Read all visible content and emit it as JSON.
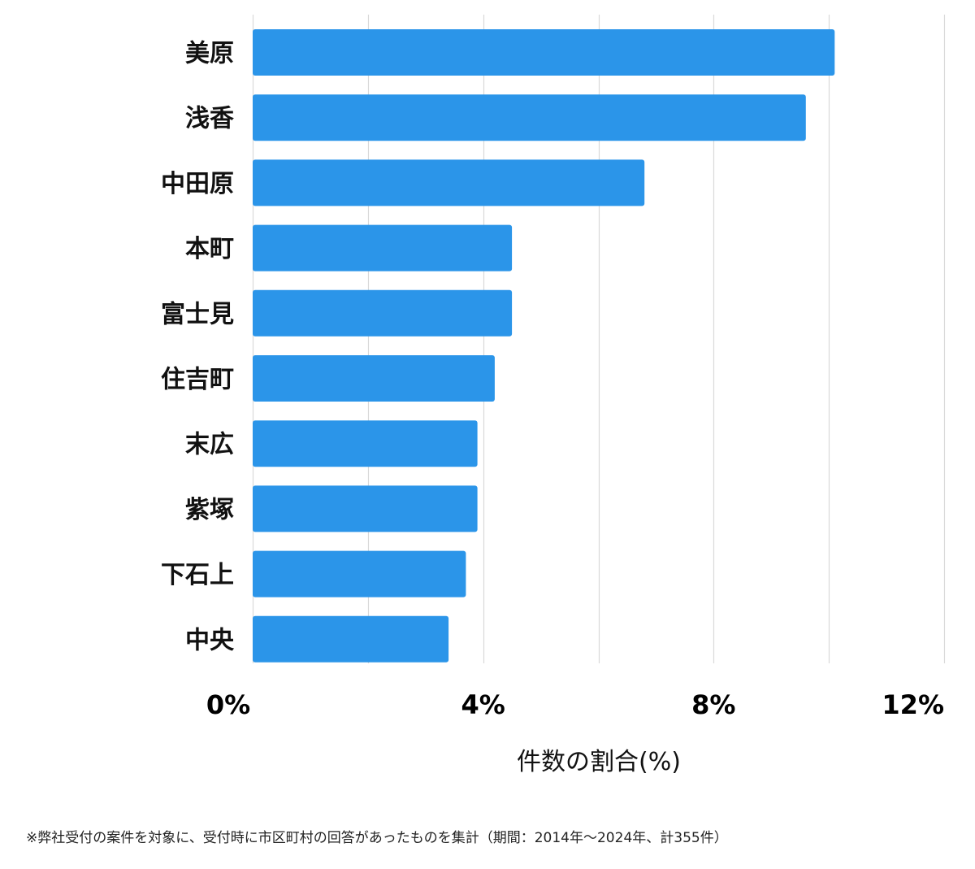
{
  "chart_data": {
    "type": "bar",
    "orientation": "horizontal",
    "categories": [
      "美原",
      "浅香",
      "中田原",
      "本町",
      "富士見",
      "住吉町",
      "末広",
      "紫塚",
      "下石上",
      "中央"
    ],
    "values": [
      10.1,
      9.6,
      6.8,
      4.5,
      4.5,
      4.2,
      3.9,
      3.9,
      3.7,
      3.4
    ],
    "xlim": [
      0,
      12
    ],
    "xticks": [
      0,
      4,
      8,
      12
    ],
    "tick_labels": [
      "0%",
      "4%",
      "8%",
      "12%"
    ],
    "xlabel": "件数の割合(%)",
    "ylabel": "",
    "grid": true,
    "bar_color": "#2b95e9",
    "grid_color": "#d9d9d9"
  },
  "footnote": "※弊社受付の案件を対象に、受付時に市区町村の回答があったものを集計（期間：2014年～2024年、計355件）"
}
